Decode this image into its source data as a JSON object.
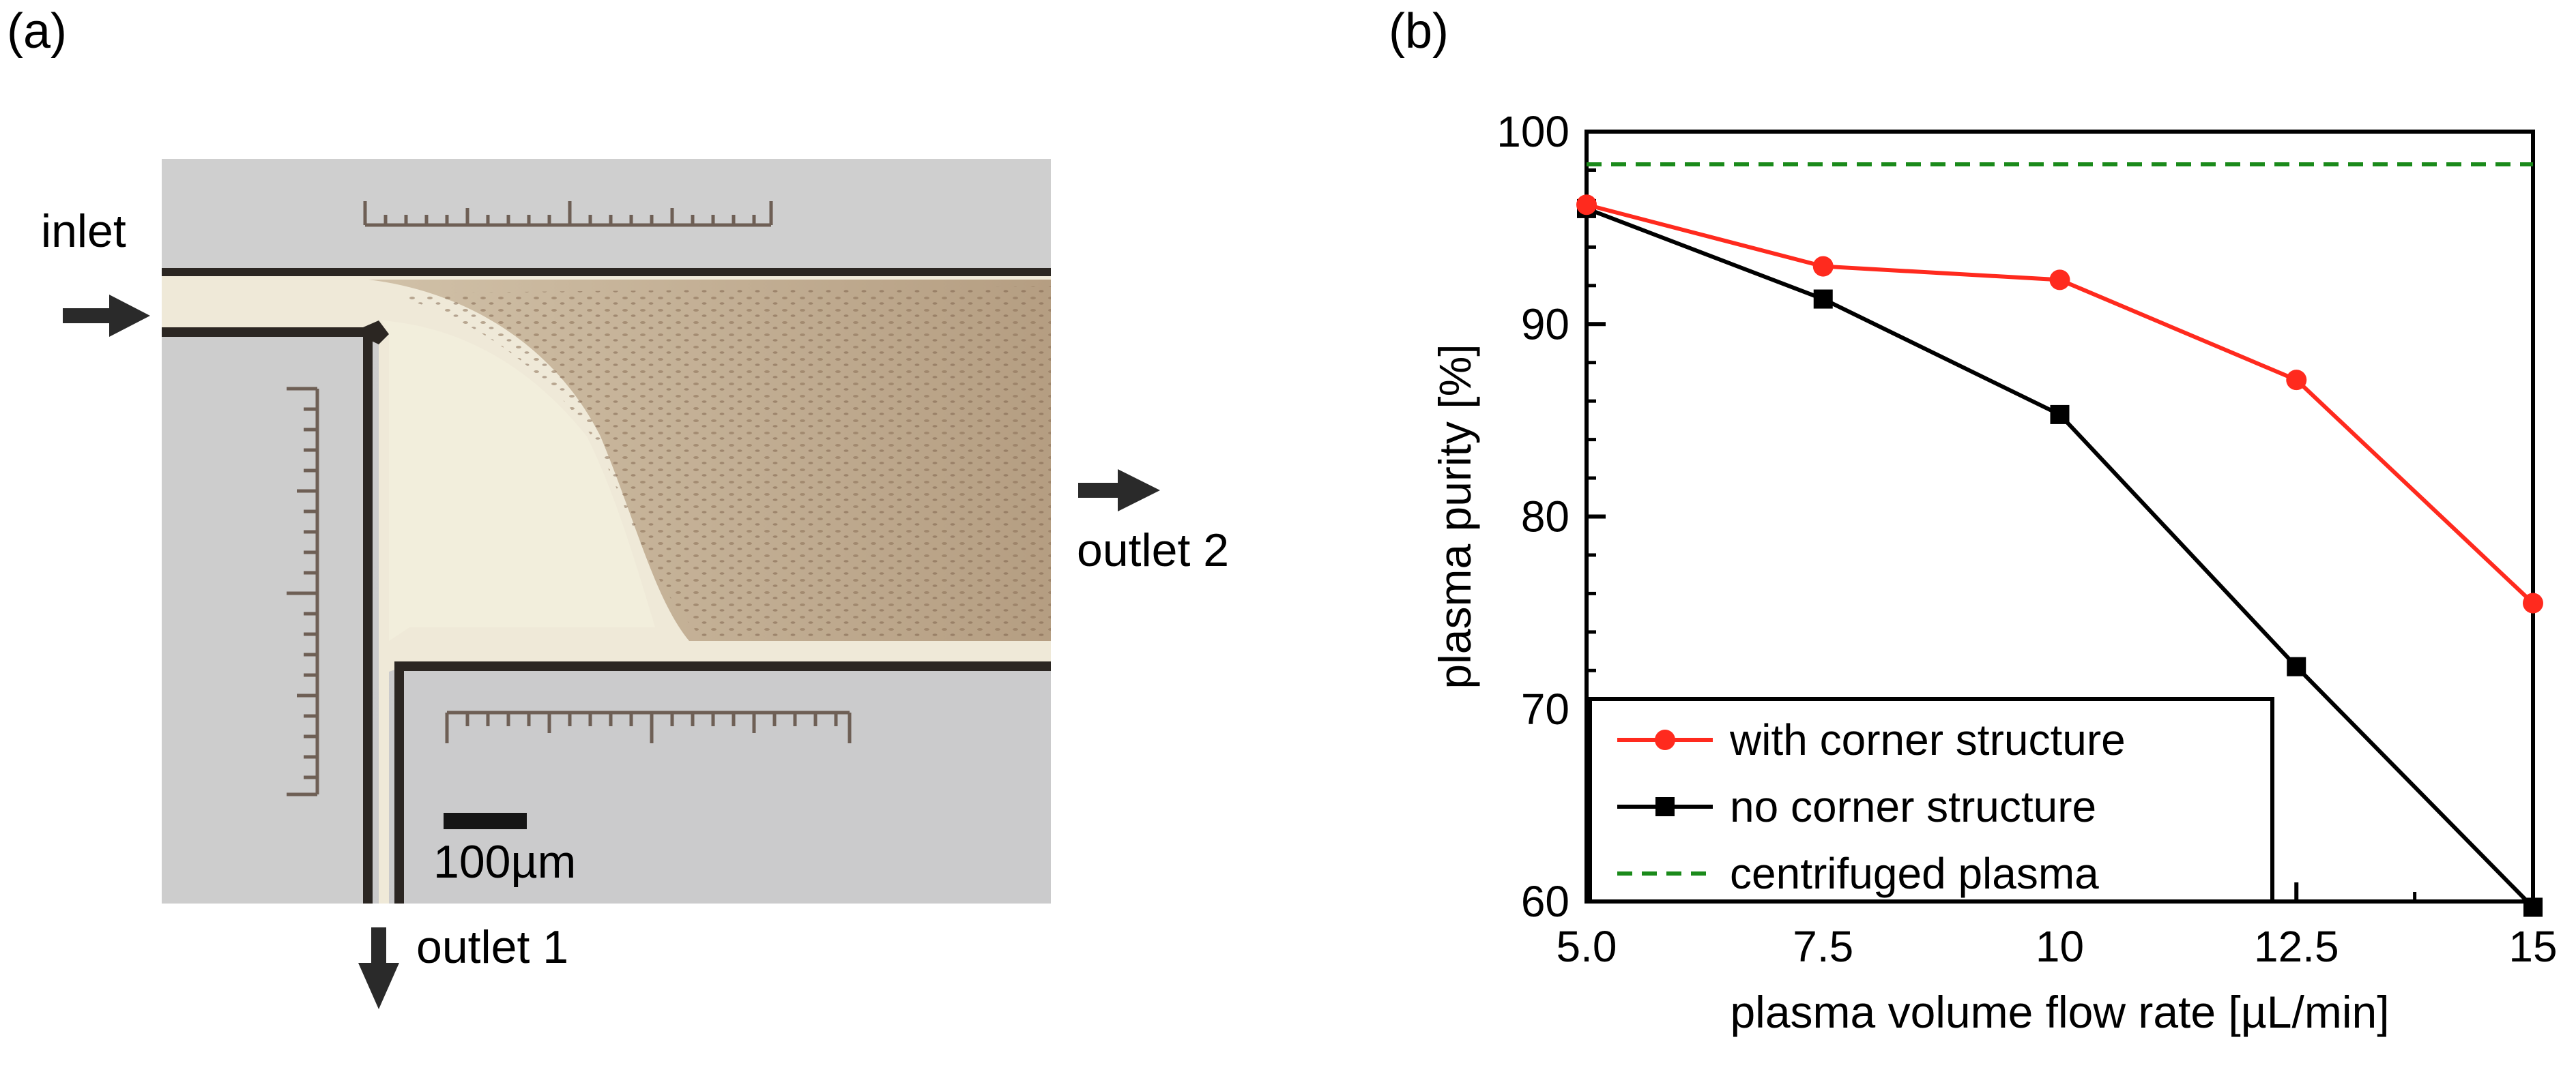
{
  "panels": {
    "a_label": "(a)",
    "b_label": "(b)"
  },
  "micrograph": {
    "inlet_label": "inlet",
    "outlet1_label": "outlet 1",
    "outlet2_label": "outlet 2",
    "scale_bar_label": "100µm",
    "arrow_color": "#2a2a2a"
  },
  "chart_data": {
    "type": "line",
    "xlabel": "plasma volume flow rate [µL/min]",
    "ylabel": "plasma purity [%]",
    "x_tick_labels": [
      "5.0",
      "7.5",
      "10",
      "12.5",
      "15"
    ],
    "x": [
      5.0,
      7.5,
      10,
      12.5,
      15
    ],
    "xlim": [
      5,
      15
    ],
    "y_ticks": [
      60,
      70,
      80,
      90,
      100
    ],
    "ylim": [
      60,
      100
    ],
    "series": [
      {
        "name": "with corner structure",
        "color": "#ff2a1e",
        "marker": "circle",
        "values": [
          96.2,
          93.0,
          92.3,
          87.1,
          75.5
        ]
      },
      {
        "name": "no corner structure",
        "color": "#000000",
        "marker": "square",
        "values": [
          96.0,
          91.3,
          85.3,
          72.2,
          59.7
        ]
      }
    ],
    "reference_line": {
      "name": "centrifuged plasma",
      "value": 98.3,
      "color": "#1a8a1a",
      "style": "dashed"
    },
    "legend_position": "bottom-left",
    "grid": false
  }
}
